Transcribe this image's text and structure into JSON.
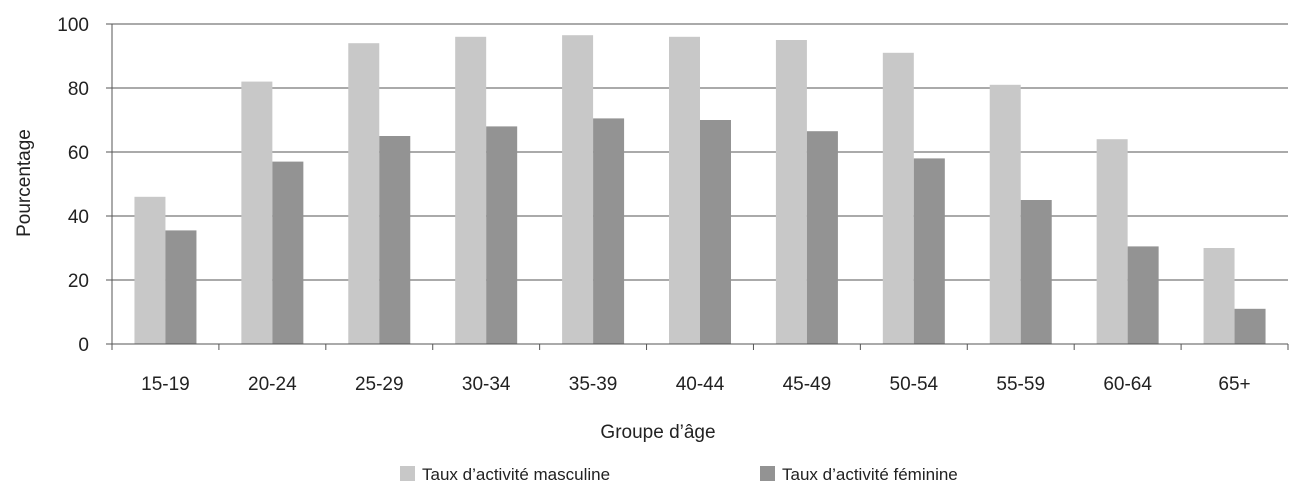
{
  "chart_data": {
    "type": "bar",
    "title": "",
    "xlabel": "Groupe d’âge",
    "ylabel": "Pourcentage",
    "ylim": [
      0,
      100
    ],
    "yticks": [
      0,
      20,
      40,
      60,
      80,
      100
    ],
    "grid": true,
    "legend_position": "bottom",
    "categories": [
      "15-19",
      "20-24",
      "25-29",
      "30-34",
      "35-39",
      "40-44",
      "45-49",
      "50-54",
      "55-59",
      "60-64",
      "65+"
    ],
    "series": [
      {
        "name": "Taux d’activité masculine",
        "color": "#c8c8c8",
        "values": [
          46,
          82,
          94,
          96,
          96.5,
          96,
          95,
          91,
          81,
          64,
          30
        ]
      },
      {
        "name": "Taux d’activité féminine",
        "color": "#939393",
        "values": [
          35.5,
          57,
          65,
          68,
          70.5,
          70,
          66.5,
          58,
          45,
          30.5,
          11
        ]
      }
    ]
  }
}
